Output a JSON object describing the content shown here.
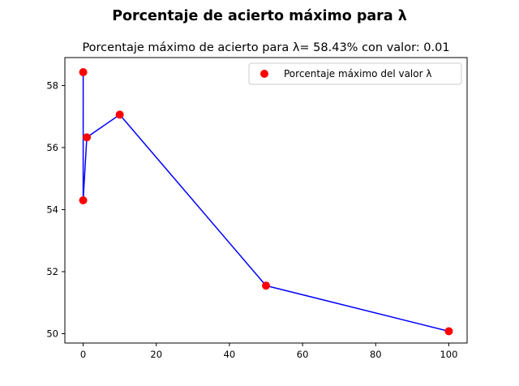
{
  "chart_data": {
    "type": "line",
    "suptitle": "Porcentaje de acierto máximo para λ",
    "title": "Porcentaje máximo de acierto para λ= 58.43% con valor: 0.01",
    "xlabel": "",
    "ylabel": "",
    "x": [
      0.01,
      0.0,
      1,
      10,
      50,
      100
    ],
    "series": [
      {
        "line_values": [
          58.43,
          54.3,
          56.33,
          57.06,
          51.55,
          50.08
        ],
        "line_color": "#0000ff",
        "marker_color": "#ff0000",
        "legend_name": "Porcentaje máximo del valor λ"
      }
    ],
    "xlim": [
      -5,
      105
    ],
    "ylim": [
      49.7,
      58.9
    ],
    "xticks": [
      0,
      20,
      40,
      60,
      80,
      100
    ],
    "yticks": [
      50,
      52,
      54,
      56,
      58
    ],
    "grid": false,
    "legend_position": "upper right"
  }
}
